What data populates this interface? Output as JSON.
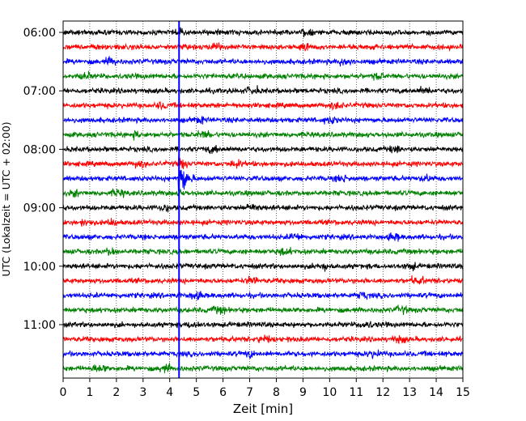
{
  "chart_data": {
    "type": "line",
    "title": "",
    "xlabel": "Zeit  [min]",
    "ylabel": "UTC (Lokalzeit = UTC + 02:00)",
    "xlim": [
      0,
      15
    ],
    "x_ticks": [
      "0",
      "1",
      "2",
      "3",
      "4",
      "5",
      "6",
      "7",
      "8",
      "9",
      "10",
      "11",
      "12",
      "13",
      "14",
      "15"
    ],
    "y_ticks": [
      "06:00",
      "07:00",
      "08:00",
      "09:00",
      "10:00",
      "11:00"
    ],
    "trace_start": "06:00",
    "trace_interval_min": 15,
    "trace_count": 24,
    "trace_colors": [
      "#000000",
      "#ff0000",
      "#0000ff",
      "#008000"
    ],
    "event_marker": {
      "x_min": 4.35,
      "color": "#0000ff"
    },
    "event": {
      "trace_index": 10,
      "time_label": "08:30",
      "onset_min": 4.32,
      "peak_amplitude": 3.2,
      "duration_min": 0.6
    },
    "grid": "vertical dotted"
  }
}
